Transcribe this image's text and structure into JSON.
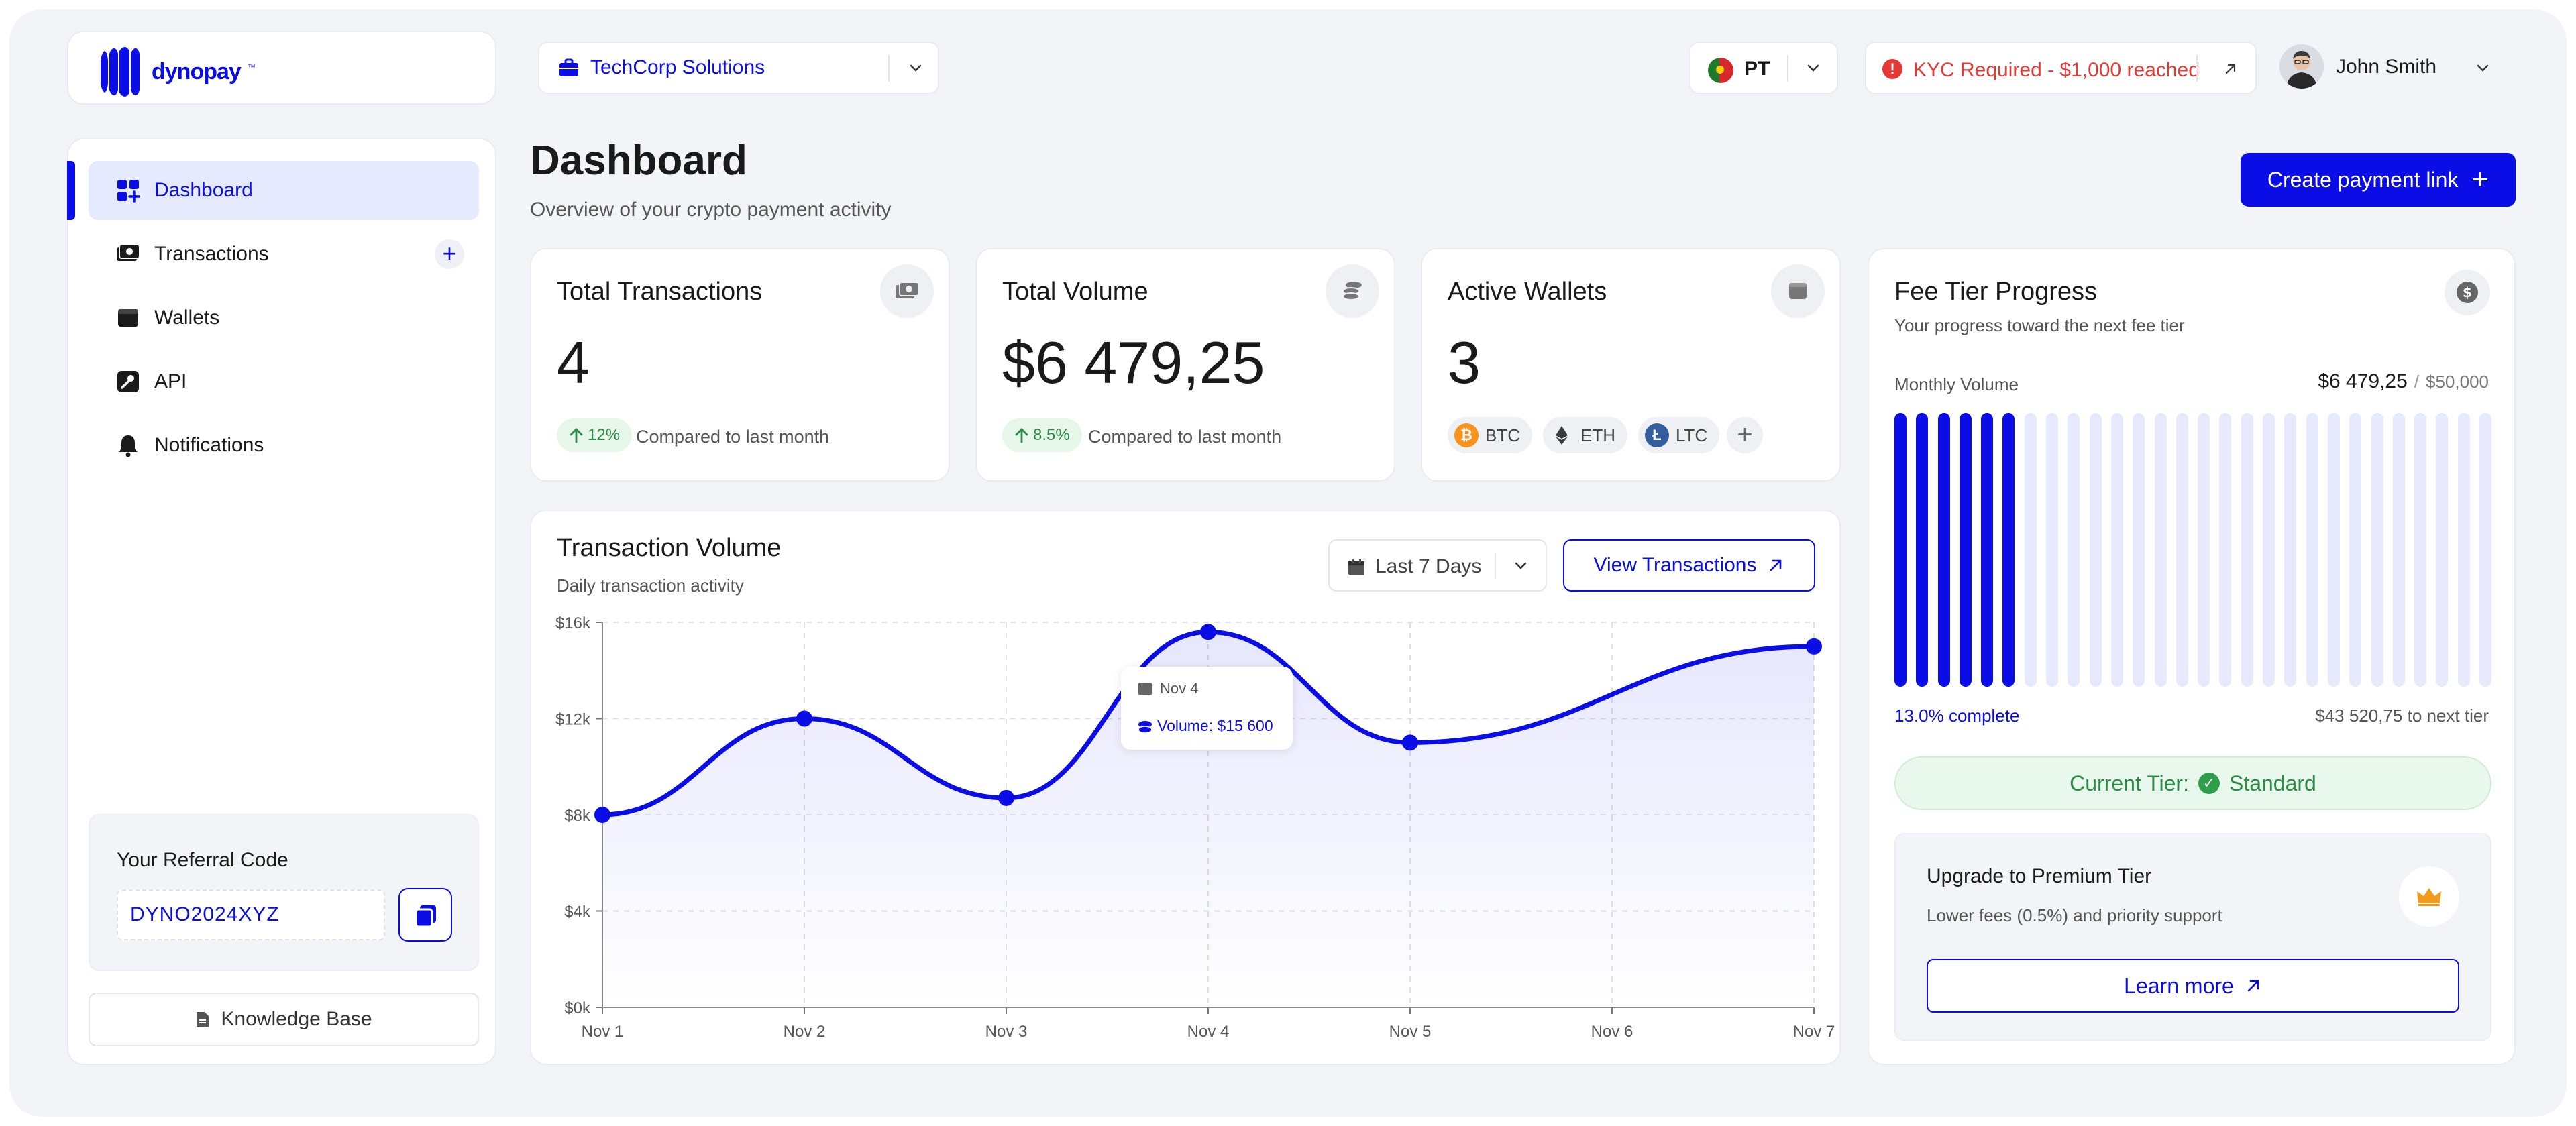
{
  "brand": {
    "name": "dynopay",
    "tm": "™",
    "accent": "#0A0DE6"
  },
  "header": {
    "organization": "TechCorp Solutions",
    "language": "PT",
    "kyc_alert": "KYC Required - $1,000 reached",
    "user_name": "John Smith"
  },
  "sidebar": {
    "items": [
      {
        "label": "Dashboard",
        "icon": "grid-plus-icon",
        "active": true
      },
      {
        "label": "Transactions",
        "icon": "cash-icon",
        "active": false
      },
      {
        "label": "Wallets",
        "icon": "wallet-icon",
        "active": false
      },
      {
        "label": "API",
        "icon": "api-key-icon",
        "active": false
      },
      {
        "label": "Notifications",
        "icon": "bell-icon",
        "active": false
      }
    ],
    "referral": {
      "title": "Your Referral Code",
      "code": "DYNO2024XYZ"
    },
    "knowledge_base": "Knowledge Base"
  },
  "page": {
    "title": "Dashboard",
    "subtitle": "Overview of your crypto payment activity",
    "create_button": "Create payment link"
  },
  "stats": {
    "total_transactions": {
      "title": "Total Transactions",
      "value": "4",
      "trend": "12%",
      "note": "Compared to last month"
    },
    "total_volume": {
      "title": "Total Volume",
      "value": "$6 479,25",
      "trend": "8.5%",
      "note": "Compared to last month"
    },
    "active_wallets": {
      "title": "Active Wallets",
      "value": "3",
      "coins": [
        {
          "label": "BTC",
          "color": "#F7931A"
        },
        {
          "label": "ETH",
          "color": "#3C3C3D"
        },
        {
          "label": "LTC",
          "color": "#345D9D"
        }
      ]
    }
  },
  "chart": {
    "title": "Transaction Volume",
    "subtitle": "Daily transaction activity",
    "range": "Last 7 Days",
    "view_button": "View Transactions",
    "tooltip": {
      "date": "Nov 4",
      "text": "Volume: $15 600"
    }
  },
  "chart_data": {
    "type": "line",
    "title": "Transaction Volume",
    "x": [
      "Nov 1",
      "Nov 2",
      "Nov 3",
      "Nov 4",
      "Nov 5",
      "Nov 6",
      "Nov 7"
    ],
    "series": [
      {
        "values": [
          8000,
          12000,
          8700,
          15600,
          11000,
          null,
          15000
        ]
      }
    ],
    "ylim": [
      0,
      16000
    ],
    "yticks": [
      0,
      4000,
      8000,
      12000,
      16000
    ],
    "ytick_labels": [
      "$0k",
      "$4k",
      "$8k",
      "$12k",
      "$16k"
    ],
    "grid": true,
    "fill": "area-gradient",
    "color": "#0A0DE6"
  },
  "fee_tier": {
    "title": "Fee Tier Progress",
    "subtitle": "Your progress toward the next fee tier",
    "monthly_label": "Monthly Volume",
    "monthly_value": "$6 479,25",
    "slash": "/",
    "target": "$50,000",
    "progress": 0.13,
    "progress_label": "13.0% complete",
    "to_next": "$43 520,75 to next tier",
    "current_tier_label": "Current Tier:",
    "current_tier": "Standard",
    "upgrade_title": "Upgrade to Premium Tier",
    "upgrade_sub": "Lower fees (0.5%) and priority support",
    "learn_more": "Learn more"
  }
}
